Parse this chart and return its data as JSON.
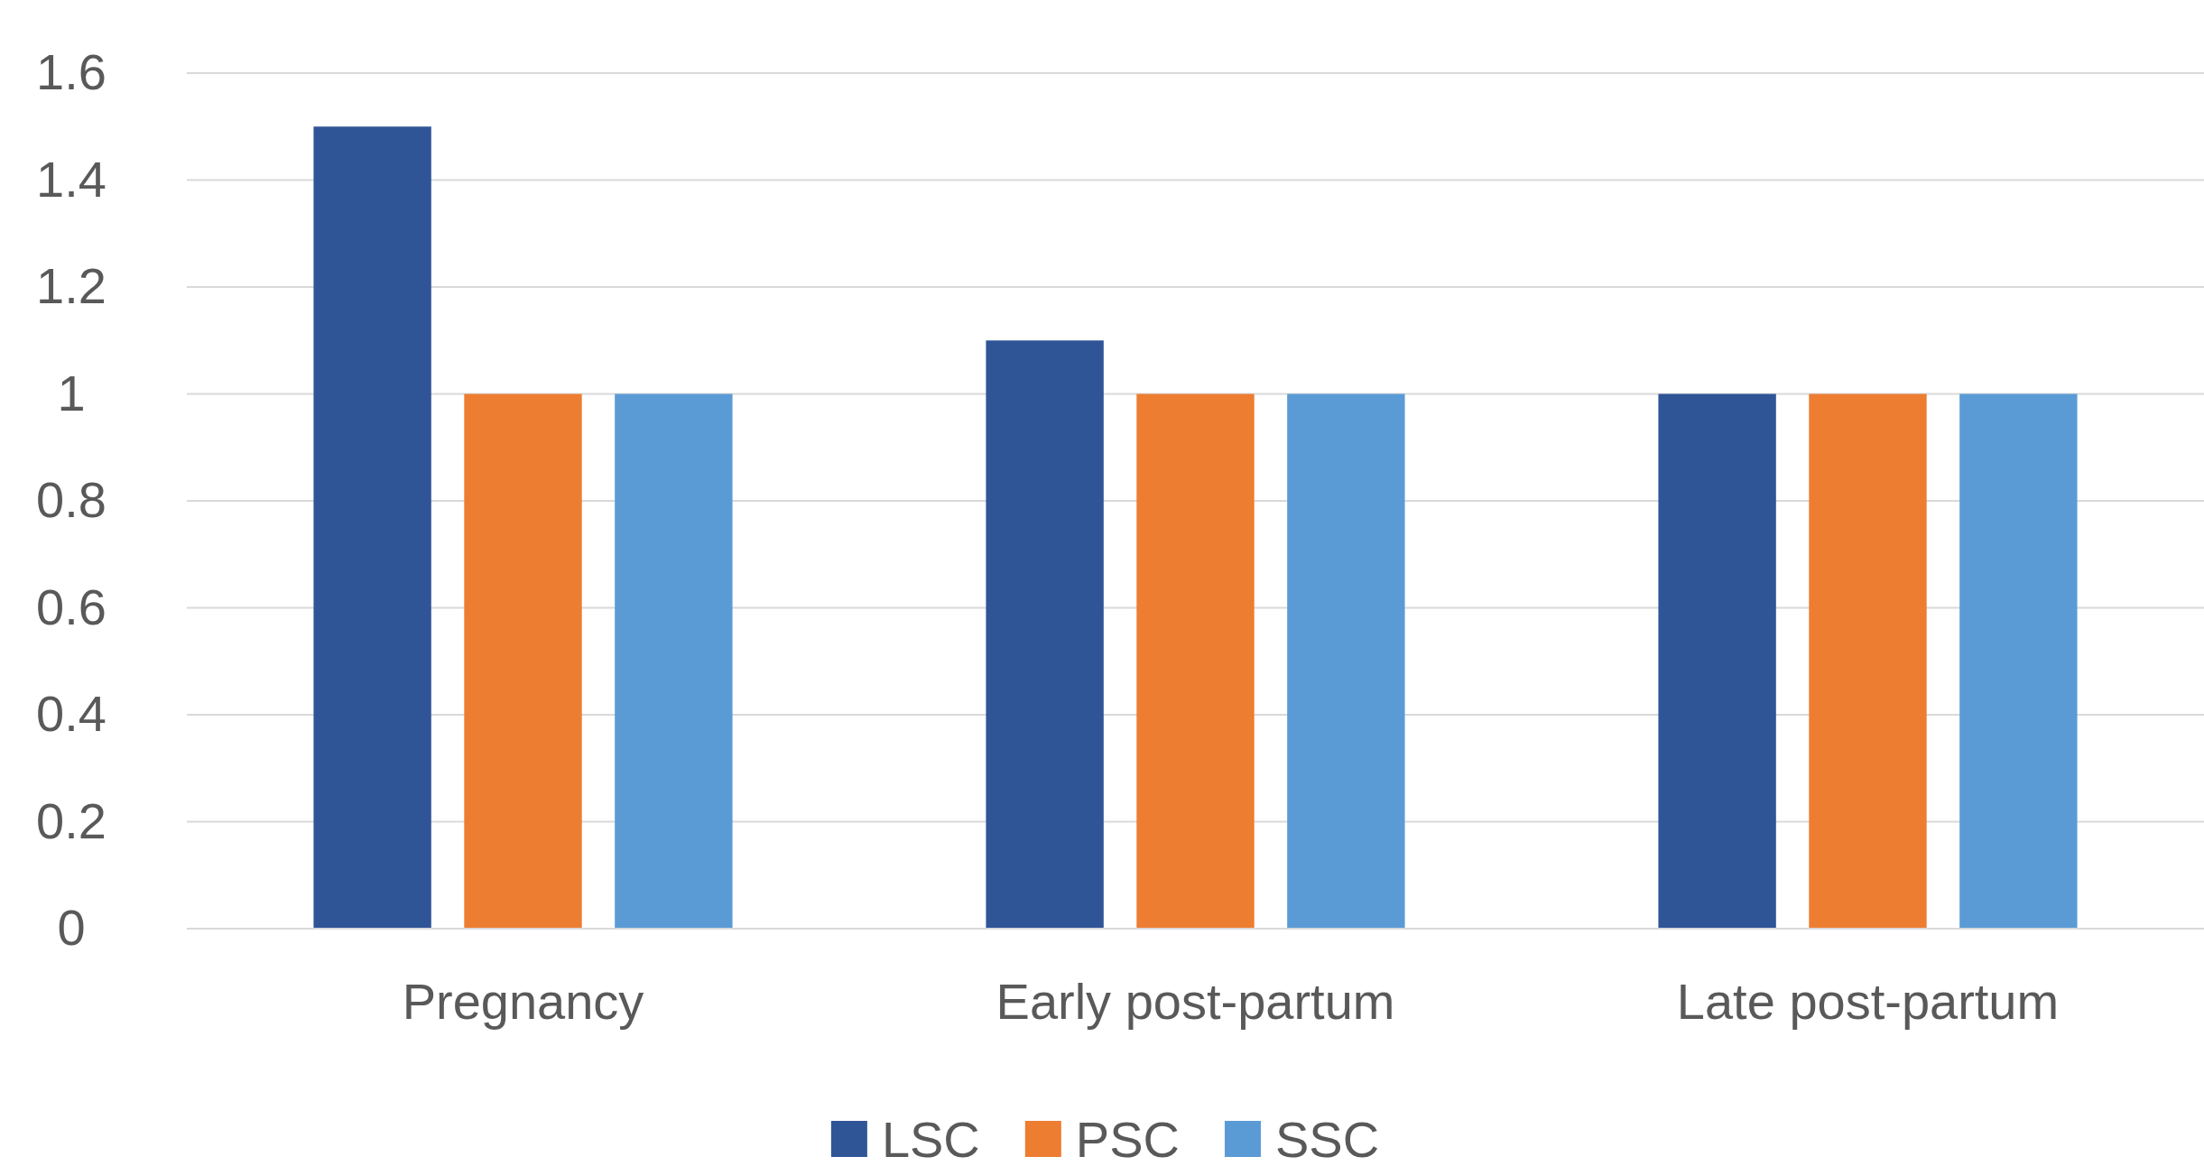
{
  "chart_data": {
    "type": "bar",
    "categories": [
      "Pregnancy",
      "Early post-partum",
      "Late post-partum"
    ],
    "series": [
      {
        "name": "LSC",
        "color": "#2f5597",
        "values": [
          1.5,
          1.1,
          1
        ]
      },
      {
        "name": "PSC",
        "color": "#ed7d31",
        "values": [
          1,
          1,
          1
        ]
      },
      {
        "name": "SSC",
        "color": "#5b9bd5",
        "values": [
          1,
          1,
          1
        ]
      }
    ],
    "ylim": [
      0,
      1.6
    ],
    "yticks": [
      0,
      {
        "value": 0.2,
        "label": "0.2"
      },
      {
        "value": 0.4,
        "label": "0.4"
      },
      {
        "value": 0.6,
        "label": "0.6"
      },
      {
        "value": 0.8,
        "label": "0.8"
      },
      1,
      {
        "value": 1.2,
        "label": "1.2"
      },
      {
        "value": 1.4,
        "label": "1.4"
      },
      {
        "value": 1.6,
        "label": "1.6"
      }
    ],
    "grid": "y",
    "legend": "bottom"
  }
}
